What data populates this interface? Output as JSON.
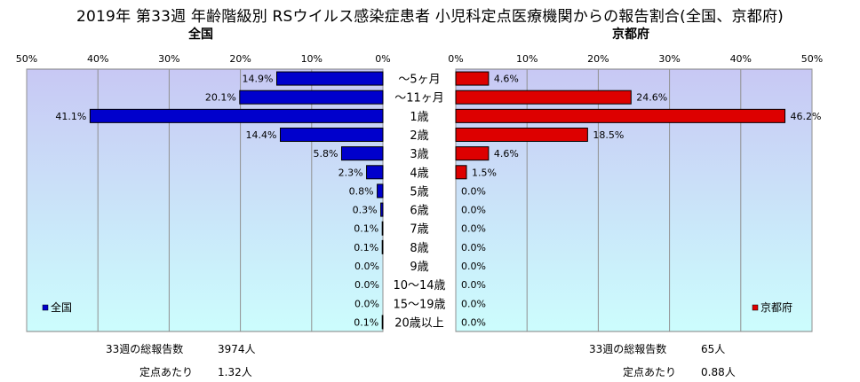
{
  "title": "2019年 第33週 年齢階級別 RSウイルス感染症患者 小児科定点医療機関からの報告割合(全国、京都府)",
  "left_panel": {
    "subtitle": "全国",
    "legend": "全国",
    "color": "#0000cc"
  },
  "right_panel": {
    "subtitle": "京都府",
    "legend": "京都府",
    "color": "#dd0000"
  },
  "axis_ticks": [
    "50%",
    "40%",
    "30%",
    "20%",
    "10%",
    "0%"
  ],
  "axis_ticks_right": [
    "0%",
    "10%",
    "20%",
    "30%",
    "40%",
    "50%"
  ],
  "stats": {
    "national": {
      "total_label": "33週の総報告数",
      "total_value": "3974人",
      "per_label": "定点あたり",
      "per_value": "1.32人"
    },
    "kyoto": {
      "total_label": "33週の総報告数",
      "total_value": "65人",
      "per_label": "定点あたり",
      "per_value": "0.88人"
    }
  },
  "chart_data": {
    "type": "bar",
    "orientation": "horizontal",
    "categories": [
      "～5ヶ月",
      "～11ヶ月",
      "1歳",
      "2歳",
      "3歳",
      "4歳",
      "5歳",
      "6歳",
      "7歳",
      "8歳",
      "9歳",
      "10～14歳",
      "15～19歳",
      "20歳以上"
    ],
    "series": [
      {
        "name": "全国",
        "values": [
          14.9,
          20.1,
          41.1,
          14.4,
          5.8,
          2.3,
          0.8,
          0.3,
          0.1,
          0.1,
          0.0,
          0.0,
          0.0,
          0.1
        ],
        "labels": [
          "14.9%",
          "20.1%",
          "41.1%",
          "14.4%",
          "5.8%",
          "2.3%",
          "0.8%",
          "0.3%",
          "0.1%",
          "0.1%",
          "0.0%",
          "0.0%",
          "0.0%",
          "0.1%"
        ]
      },
      {
        "name": "京都府",
        "values": [
          4.6,
          24.6,
          46.2,
          18.5,
          4.6,
          1.5,
          0.0,
          0.0,
          0.0,
          0.0,
          0.0,
          0.0,
          0.0,
          0.0
        ],
        "labels": [
          "4.6%",
          "24.6%",
          "46.2%",
          "18.5%",
          "4.6%",
          "1.5%",
          "0.0%",
          "0.0%",
          "0.0%",
          "0.0%",
          "0.0%",
          "0.0%",
          "0.0%",
          "0.0%"
        ]
      }
    ],
    "xlim": [
      0,
      50
    ],
    "grid": true,
    "legend_position": "bottom-left / bottom-right"
  }
}
